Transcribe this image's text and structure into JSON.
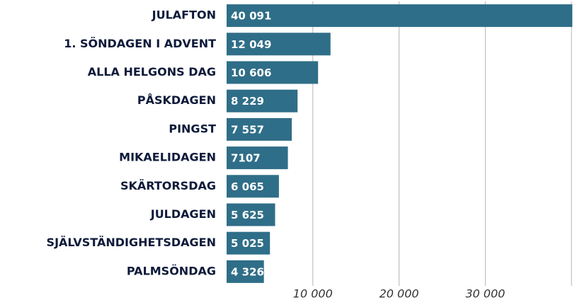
{
  "chart_data": {
    "type": "hbar",
    "categories": [
      "JULAFTON",
      "1. SÖNDAGEN I ADVENT",
      "ALLA HELGONS DAG",
      "PÅSKDAGEN",
      "PINGST",
      "MIKAELIDAGEN",
      "SKÄRTORSDAG",
      "JULDAGEN",
      "SJÄLVSTÄNDIGHETSDAGEN",
      "PALMSÖNDAG"
    ],
    "values": [
      40091,
      12049,
      10606,
      8229,
      7557,
      7107,
      6065,
      5625,
      5025,
      4326
    ],
    "value_labels": [
      "40 091",
      "12 049",
      "10 606",
      "8 229",
      "7 557",
      "7107",
      "6 065",
      "5 625",
      "5 025",
      "4 326"
    ],
    "color": "#2f6e88",
    "xlim": [
      0,
      40400
    ],
    "xticks": [
      {
        "value": 10000,
        "label": "10 000"
      },
      {
        "value": 20000,
        "label": "20 000"
      },
      {
        "value": 30000,
        "label": "30 000"
      }
    ],
    "grid": true
  }
}
